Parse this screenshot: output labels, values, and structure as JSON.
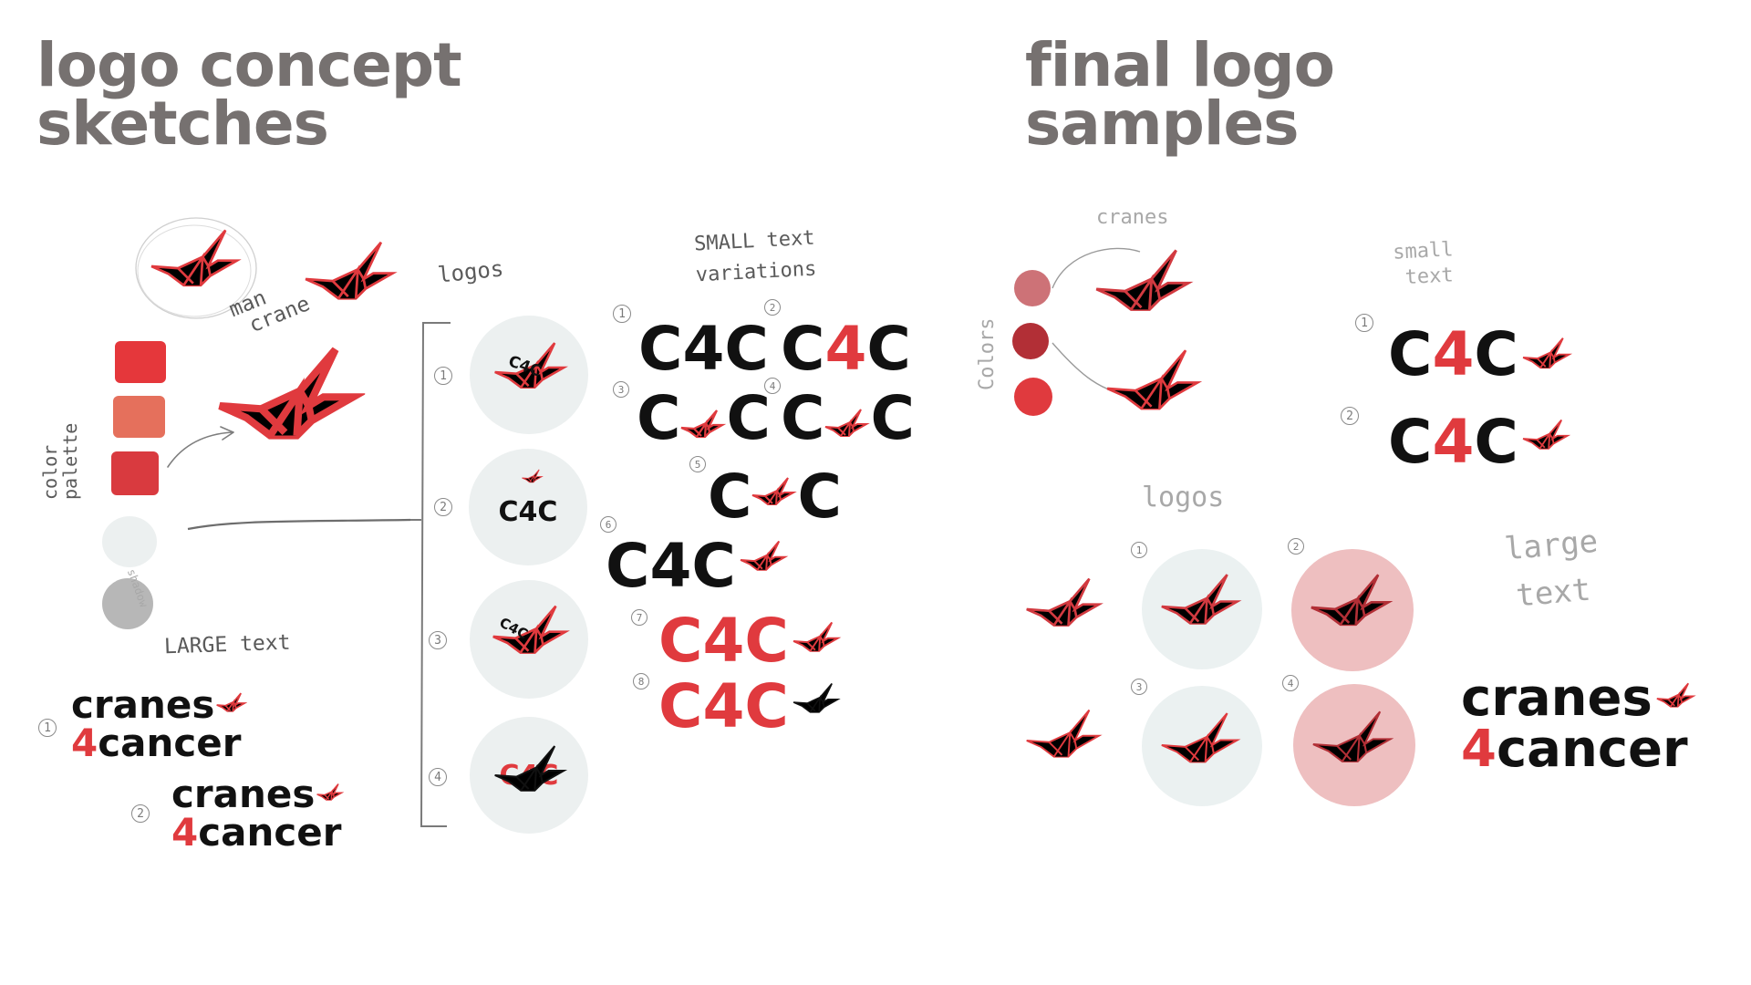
{
  "headings": {
    "left": [
      "logo concept",
      "sketches"
    ],
    "right": [
      "final logo",
      "samples"
    ]
  },
  "sketches": {
    "main_crane_note": [
      "man",
      "crane"
    ],
    "color_palette_note": [
      "color",
      "palette"
    ],
    "palette_colors": [
      "#e5373b",
      "#e5705c",
      "#d93a3f"
    ],
    "secondary_colors": [
      "#ecf0f0",
      "#b7b7b7"
    ],
    "shadow_note": "shadow",
    "logos_label": "logos",
    "logo_numbers": [
      "1",
      "2",
      "3",
      "4"
    ],
    "logo_text": "C4C",
    "small_text_label": [
      "SMALL text",
      "variations"
    ],
    "small_text_numbers": [
      "1",
      "2",
      "3",
      "4",
      "5",
      "6",
      "7",
      "8"
    ],
    "small_text_parts": {
      "c": "C",
      "four": "4"
    },
    "large_text_label": "LARGE text",
    "large_text_numbers": [
      "1",
      "2"
    ],
    "wordmark": {
      "line1": "cranes",
      "digit": "4",
      "line2": "cancer"
    }
  },
  "final": {
    "cranes_label": "cranes",
    "colors_label": "Colors",
    "color_dots": [
      "#cd7277",
      "#b22f36",
      "#e03a3e"
    ],
    "small_text_label": [
      "small",
      "text"
    ],
    "small_text_numbers": [
      "1",
      "2"
    ],
    "logos_label": "logos",
    "logo_numbers": [
      "1",
      "2",
      "3",
      "4"
    ],
    "badge_colors": {
      "light": "#ebf1f1",
      "pink": "#eebfc0"
    },
    "large_text_label": [
      "large",
      "text"
    ],
    "logo_text": {
      "c": "C",
      "four": "4"
    },
    "wordmark": {
      "line1": "cranes",
      "digit": "4",
      "line2": "cancer"
    }
  }
}
